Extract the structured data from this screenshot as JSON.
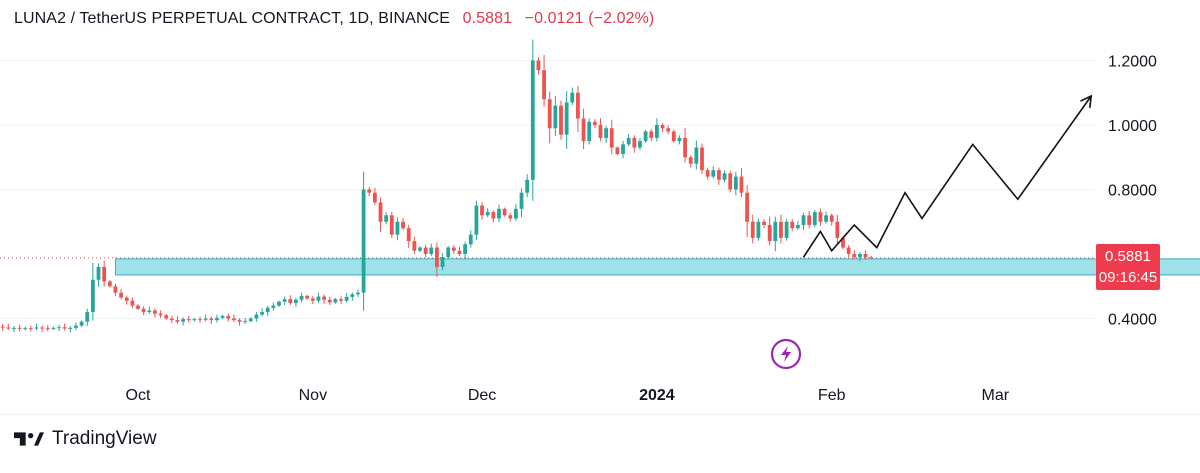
{
  "header": {
    "symbol_line": "LUNA2 / TetherUS PERPETUAL CONTRACT, 1D, BINANCE",
    "last_price": "0.5881",
    "change": "−0.0121 (−2.02%)"
  },
  "price_tag": {
    "price": "0.5881",
    "countdown": "09:16:45"
  },
  "brand": {
    "name": "TradingView",
    "logo_icon": "tradingview-logo-icon"
  },
  "event_icon": "lightning-icon",
  "colors": {
    "up": "#26a69a",
    "down": "#ef5350",
    "zone_fill": "#9fe1ea",
    "zone_stroke": "#3aaec2",
    "price_tag": "#f03a4e",
    "event_icon": "#9c27b0"
  },
  "chart_data": {
    "type": "candlestick",
    "title": "LUNA2 / TetherUS PERPETUAL CONTRACT, 1D, BINANCE",
    "y_ticks": [
      "0.4000",
      "0.8000",
      "1.0000",
      "1.2000"
    ],
    "ylim": [
      0.2,
      1.3
    ],
    "x_ticks": [
      "Oct",
      "Nov",
      "Dec",
      "2024",
      "Feb",
      "Mar"
    ],
    "x_tick_dates": [
      "2023-10-01",
      "2023-11-01",
      "2023-12-01",
      "2024-01-01",
      "2024-02-01",
      "2024-03-01"
    ],
    "last_price": 0.5881,
    "support_zone": {
      "from_date": "2023-09-27",
      "to_date": "2024-04-15",
      "low": 0.535,
      "high": 0.585
    },
    "projection_path": [
      [
        "2024-01-27",
        0.59
      ],
      [
        "2024-01-30",
        0.67
      ],
      [
        "2024-02-01",
        0.61
      ],
      [
        "2024-02-05",
        0.69
      ],
      [
        "2024-02-09",
        0.62
      ],
      [
        "2024-02-14",
        0.79
      ],
      [
        "2024-02-17",
        0.71
      ],
      [
        "2024-02-26",
        0.94
      ],
      [
        "2024-03-05",
        0.77
      ],
      [
        "2024-03-18",
        1.09
      ]
    ],
    "candles": {
      "start_date": "2023-09-06",
      "closes": [
        0.375,
        0.372,
        0.37,
        0.371,
        0.368,
        0.37,
        0.369,
        0.372,
        0.37,
        0.368,
        0.371,
        0.373,
        0.369,
        0.371,
        0.378,
        0.39,
        0.42,
        0.52,
        0.56,
        0.515,
        0.5,
        0.48,
        0.465,
        0.455,
        0.44,
        0.43,
        0.42,
        0.425,
        0.415,
        0.41,
        0.4,
        0.395,
        0.39,
        0.398,
        0.395,
        0.398,
        0.396,
        0.4,
        0.395,
        0.402,
        0.408,
        0.4,
        0.395,
        0.39,
        0.392,
        0.4,
        0.412,
        0.42,
        0.433,
        0.44,
        0.452,
        0.46,
        0.448,
        0.458,
        0.47,
        0.462,
        0.455,
        0.468,
        0.458,
        0.45,
        0.46,
        0.455,
        0.467,
        0.475,
        0.48,
        0.8,
        0.79,
        0.76,
        0.7,
        0.72,
        0.66,
        0.7,
        0.68,
        0.64,
        0.61,
        0.62,
        0.6,
        0.62,
        0.56,
        0.59,
        0.62,
        0.61,
        0.6,
        0.63,
        0.66,
        0.75,
        0.72,
        0.73,
        0.71,
        0.74,
        0.72,
        0.71,
        0.74,
        0.79,
        0.83,
        1.2,
        1.17,
        1.08,
        0.99,
        1.06,
        0.97,
        1.07,
        1.1,
        1.02,
        0.95,
        1.01,
        1.0,
        0.96,
        0.99,
        0.93,
        0.91,
        0.94,
        0.96,
        0.93,
        0.95,
        0.98,
        0.96,
        1.0,
        0.99,
        0.98,
        0.95,
        0.96,
        0.9,
        0.88,
        0.93,
        0.86,
        0.84,
        0.86,
        0.83,
        0.85,
        0.8,
        0.84,
        0.79,
        0.7,
        0.65,
        0.7,
        0.69,
        0.64,
        0.7,
        0.65,
        0.7,
        0.68,
        0.69,
        0.72,
        0.69,
        0.73,
        0.7,
        0.72,
        0.7,
        0.65,
        0.62,
        0.6,
        0.59,
        0.6,
        0.59,
        0.588
      ]
    }
  }
}
